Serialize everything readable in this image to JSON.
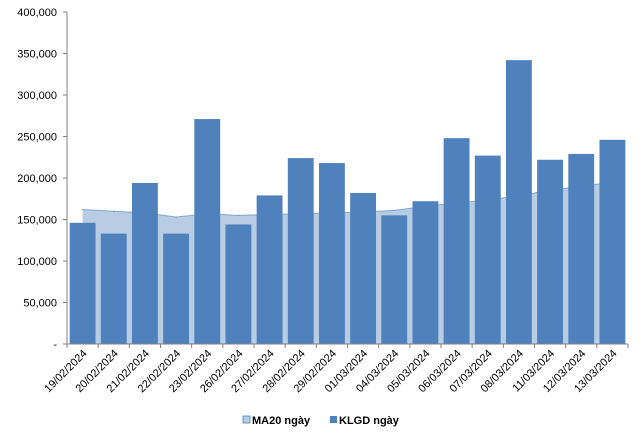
{
  "chart_data": {
    "type": "bar",
    "categories": [
      "19/02/2024",
      "20/02/2024",
      "21/02/2024",
      "22/02/2024",
      "23/02/2024",
      "26/02/2024",
      "27/02/2024",
      "28/02/2024",
      "29/02/2024",
      "01/03/2024",
      "04/03/2024",
      "05/03/2024",
      "06/03/2024",
      "07/03/2024",
      "08/03/2024",
      "11/03/2024",
      "12/03/2024",
      "13/03/2024"
    ],
    "series": [
      {
        "name": "MA20 ngày",
        "kind": "area",
        "color": "#b8cce4",
        "edge_color": "#4f81bd",
        "values": [
          162000,
          160000,
          158000,
          153000,
          157000,
          155000,
          156000,
          157000,
          158000,
          159000,
          161000,
          166000,
          170000,
          173000,
          179000,
          185000,
          190000,
          195000
        ]
      },
      {
        "name": "KLGD ngày",
        "kind": "bar",
        "color": "#4f81bd",
        "values": [
          146000,
          133000,
          194000,
          133000,
          271000,
          144000,
          179000,
          224000,
          218000,
          182000,
          155000,
          172000,
          248000,
          227000,
          342000,
          222000,
          229000,
          246000
        ]
      }
    ],
    "ylim": [
      0,
      400000
    ],
    "yticks": [
      0,
      50000,
      100000,
      150000,
      200000,
      250000,
      300000,
      350000,
      400000
    ],
    "ytick_labels": [
      "-",
      "50,000",
      "100,000",
      "150,000",
      "200,000",
      "250,000",
      "300,000",
      "350,000",
      "400,000"
    ],
    "grid": false,
    "legend": "bottom"
  }
}
